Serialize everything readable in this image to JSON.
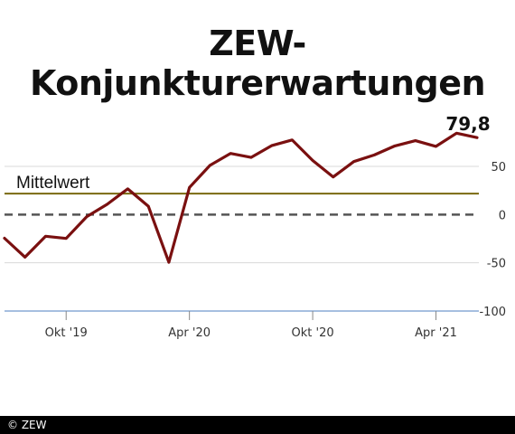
{
  "title": "ZEW-Konjunkturerwartungen",
  "footer": "© ZEW",
  "chart_data": {
    "type": "line",
    "title": "ZEW-Konjunkturerwartungen",
    "xlabel": "",
    "ylabel": "",
    "x_ticks": [
      "Okt '19",
      "Apr '20",
      "Okt '20",
      "Apr '21"
    ],
    "y_ticks": [
      "50",
      "0",
      "-50",
      "-100"
    ],
    "ylim": [
      -110,
      95
    ],
    "x": [
      "2019-07",
      "2019-08",
      "2019-09",
      "2019-10",
      "2019-11",
      "2019-12",
      "2020-01",
      "2020-02",
      "2020-03",
      "2020-04",
      "2020-05",
      "2020-06",
      "2020-07",
      "2020-08",
      "2020-09",
      "2020-10",
      "2020-11",
      "2020-12",
      "2021-01",
      "2021-02",
      "2021-03",
      "2021-04",
      "2021-05",
      "2021-06"
    ],
    "series": [
      {
        "color": "#7a1010",
        "values": [
          -24.5,
          -44.1,
          -22.5,
          -24.7,
          -2.1,
          10.7,
          26.7,
          8.7,
          -49.5,
          28.2,
          51.0,
          63.4,
          59.3,
          71.5,
          77.4,
          56.1,
          39.0,
          55.0,
          61.8,
          71.2,
          76.6,
          70.7,
          84.4,
          79.8
        ]
      }
    ],
    "reference_lines": [
      {
        "label": "Mittelwert",
        "value": 21.7,
        "color": "#7a6a10",
        "style": "solid"
      },
      {
        "label": "",
        "value": 0,
        "color": "#555555",
        "style": "dashed"
      },
      {
        "label": "",
        "value": -100,
        "color": "#88aad6",
        "style": "solid"
      }
    ],
    "annotation": {
      "text": "79,8"
    },
    "grid": true
  }
}
